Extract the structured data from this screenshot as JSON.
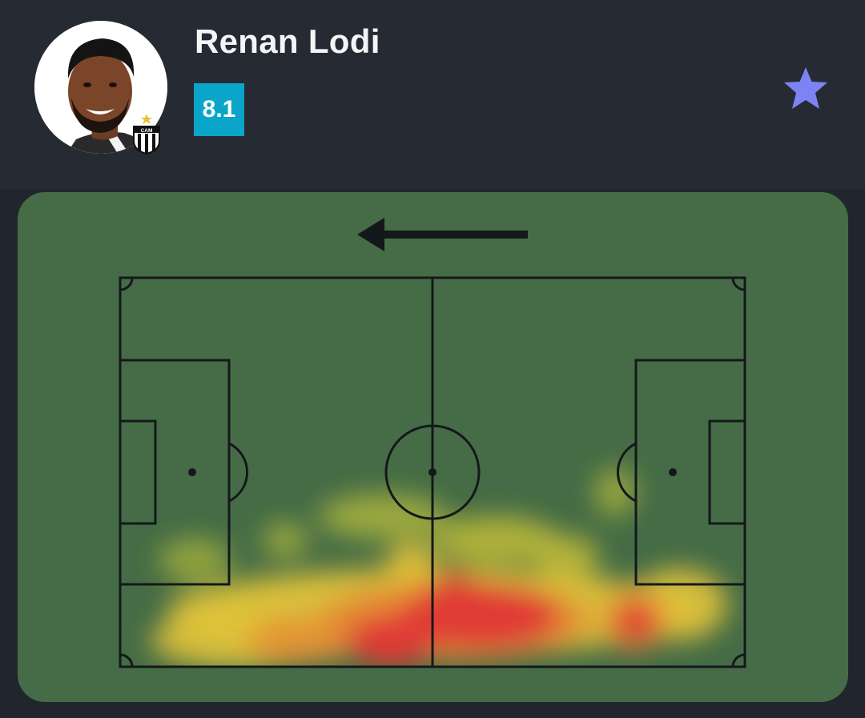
{
  "player": {
    "name": "Renan Lodi",
    "rating": "8.1",
    "avatar_icon": "player-photo",
    "club_badge_icon": "atletico-mineiro-crest",
    "club_badge_text": "CAM"
  },
  "favorite": {
    "icon": "star-icon",
    "color": "#7c83f2"
  },
  "heatmap": {
    "attack_direction": "left",
    "pitch_color": "#456c46",
    "line_color": "#15181b",
    "hot_color": "#e03b35",
    "warm_color": "#e3c43a"
  }
}
